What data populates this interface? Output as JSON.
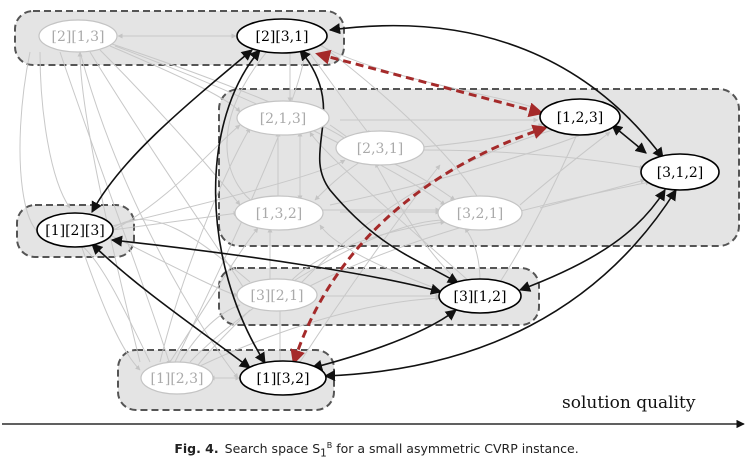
{
  "nodes": {
    "n_2_13": {
      "label": "[2][1,3]",
      "active": false
    },
    "n_2_31": {
      "label": "[2][3,1]",
      "active": true
    },
    "n_213": {
      "label": "[2,1,3]",
      "active": false
    },
    "n_231": {
      "label": "[2,3,1]",
      "active": false
    },
    "n_123": {
      "label": "[1,2,3]",
      "active": true
    },
    "n_312": {
      "label": "[3,1,2]",
      "active": true
    },
    "n_132": {
      "label": "[1,3,2]",
      "active": false
    },
    "n_321": {
      "label": "[3,2,1]",
      "active": false
    },
    "n_1_2_3": {
      "label": "[1][2][3]",
      "active": true
    },
    "n_3_21": {
      "label": "[3][2,1]",
      "active": false
    },
    "n_3_12": {
      "label": "[3][1,2]",
      "active": true
    },
    "n_1_23": {
      "label": "[1][2,3]",
      "active": false
    },
    "n_1_32": {
      "label": "[1][3,2]",
      "active": true
    }
  },
  "axis": {
    "label": "solution quality"
  },
  "caption": {
    "fig_label": "Fig. 4.",
    "text_before": "Search space S",
    "sub": "1",
    "sup": "B",
    "text_after": " for a small asymmetric CVRP instance."
  },
  "colors": {
    "region_fill": "#e4e4e4",
    "highlight_edge": "#a52a2a",
    "strong_edge": "#111111",
    "faint_edge": "#c8c8c8"
  }
}
